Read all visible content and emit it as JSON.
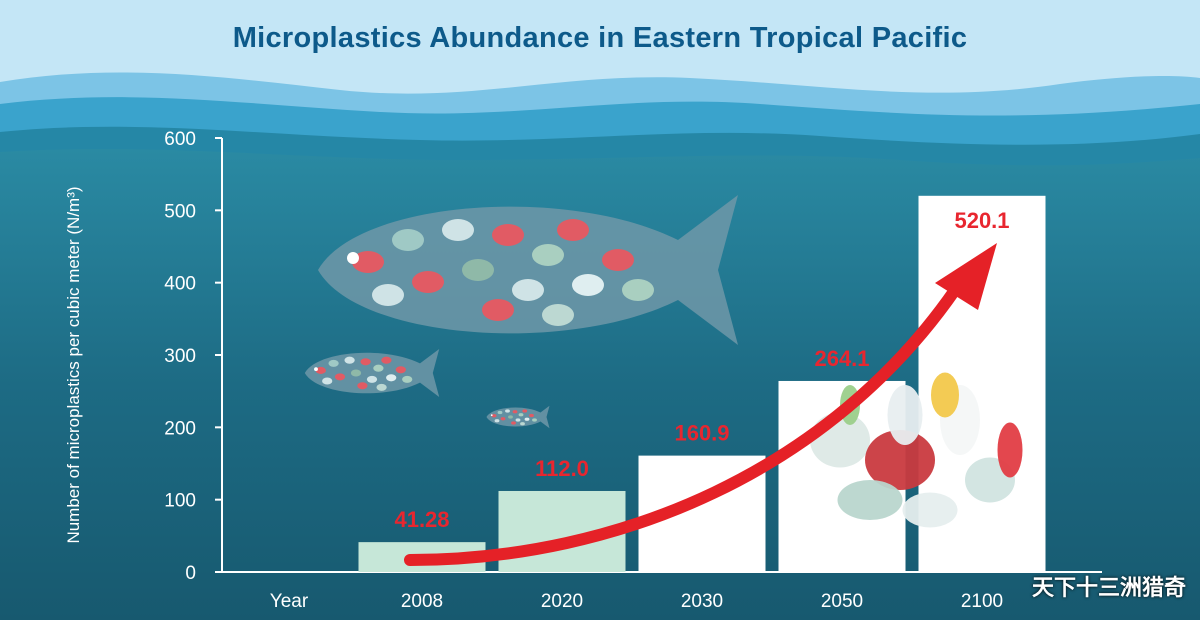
{
  "chart_data": {
    "type": "bar",
    "title": "Microplastics Abundance in Eastern Tropical Pacific",
    "ylabel": "Number of microplastics per cubic meter (N/m³)",
    "x_axis_label": "Year",
    "categories": [
      "2008",
      "2020",
      "2030",
      "2050",
      "2100"
    ],
    "values": [
      41.28,
      112.0,
      160.9,
      264.1,
      520.1
    ],
    "value_labels": [
      "41.28",
      "112.0",
      "160.9",
      "264.1",
      "520.1"
    ],
    "ylim": [
      0,
      600
    ],
    "yticks": [
      "0",
      "100",
      "200",
      "300",
      "400",
      "500",
      "600"
    ],
    "colors": {
      "early_bars": "#c6e7d8",
      "later_bars": "#ffffff",
      "value_labels": "#e8262f",
      "trend_arrow": "#e52127",
      "ocean": "#1f6d86",
      "sky": "#bfe3f5"
    },
    "grid": false
  },
  "watermark": "天下十三洲猎奇",
  "decorations": [
    "plastic-fish-large",
    "plastic-fish-medium",
    "plastic-fish-small",
    "plastic-waste-pile",
    "trend-arrow"
  ]
}
